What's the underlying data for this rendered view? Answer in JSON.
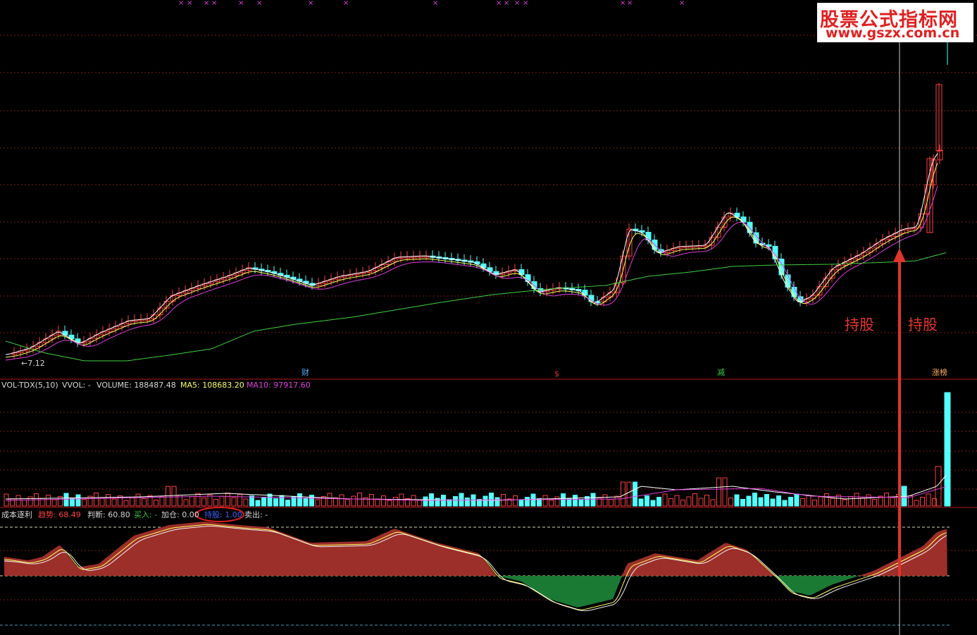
{
  "brand": {
    "name": "股票公式指标网",
    "url": "www.gszx.com.cn"
  },
  "price_panel": {
    "low_marker": "←7.12",
    "events": [
      {
        "label": "财",
        "color": "#4fb0ff"
      },
      {
        "label": "$",
        "color": "#e03030"
      },
      {
        "label": "减",
        "color": "#40d040"
      },
      {
        "label": "涨榜",
        "color": "#ffb060"
      }
    ],
    "annotations": [
      "持股",
      "持股"
    ],
    "top_markers": "×"
  },
  "volume_panel": {
    "name": "VOL-TDX(5,10)",
    "vvol_label": "VVOL: -",
    "volume_label": "VOLUME: 188487.48",
    "ma5_label": "MA5: 108683.20",
    "ma10_label": "MA10: 97917.60"
  },
  "indicator_panel": {
    "name": "成本逐利",
    "trend_label": "趋势: 68.49",
    "judge_label": "判断: 60.80",
    "buy_label": "买入: -",
    "add_label": "加仓: 0.00",
    "hold_label": "持股: 1.00",
    "sell_label": "卖出: -"
  },
  "colors": {
    "bull": "#ff4040",
    "bear": "#54ffff",
    "ma_white": "#ffffff",
    "ma_yellow": "#ffff60",
    "ma_magenta": "#e040e0",
    "ma_green": "#40d040",
    "area_pos": "#9c2f2a",
    "area_neg": "#1a7a34",
    "grid": "#7a1a1a",
    "hold_arrow": "#e0352b"
  }
}
